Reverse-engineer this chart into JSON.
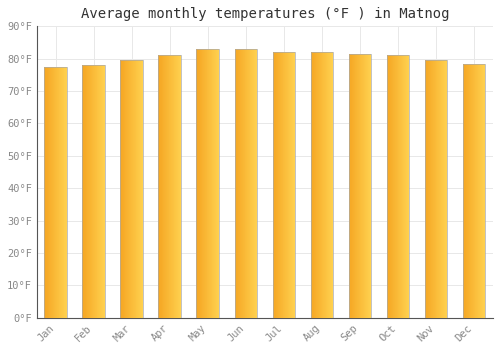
{
  "title": "Average monthly temperatures (°F ) in Matnog",
  "months": [
    "Jan",
    "Feb",
    "Mar",
    "Apr",
    "May",
    "Jun",
    "Jul",
    "Aug",
    "Sep",
    "Oct",
    "Nov",
    "Dec"
  ],
  "values": [
    77.5,
    78.0,
    79.5,
    81.0,
    83.0,
    83.0,
    82.0,
    82.0,
    81.5,
    81.0,
    79.5,
    78.5
  ],
  "bar_color_left": "#F5A623",
  "bar_color_right": "#FFD050",
  "background_color": "#FFFFFF",
  "grid_color": "#E8E8E8",
  "ylim": [
    0,
    90
  ],
  "yticks": [
    0,
    10,
    20,
    30,
    40,
    50,
    60,
    70,
    80,
    90
  ],
  "ytick_labels": [
    "0°F",
    "10°F",
    "20°F",
    "30°F",
    "40°F",
    "50°F",
    "60°F",
    "70°F",
    "80°F",
    "90°F"
  ],
  "title_fontsize": 10,
  "tick_fontsize": 7.5,
  "font_family": "monospace",
  "bar_width": 0.6,
  "n_gradient_steps": 50
}
